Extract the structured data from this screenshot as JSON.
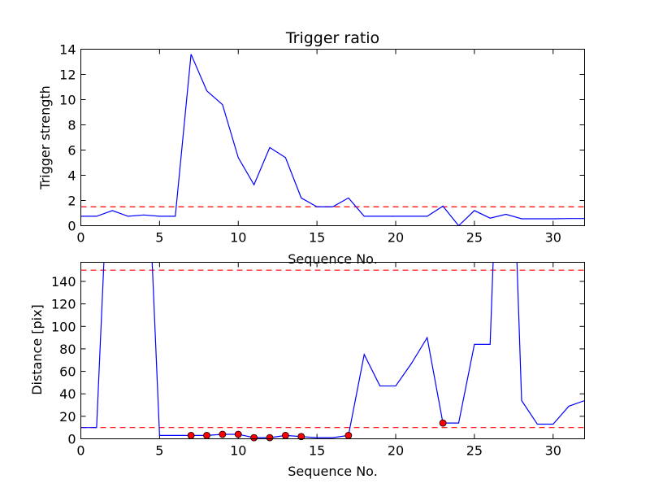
{
  "chart_data": [
    {
      "type": "line",
      "title": "Trigger ratio",
      "xlabel": "Sequence No.",
      "ylabel": "Trigger strength",
      "xlim": [
        0,
        32
      ],
      "ylim": [
        0,
        14
      ],
      "xticks": [
        0,
        5,
        10,
        15,
        20,
        25,
        30
      ],
      "yticks": [
        0,
        2,
        4,
        6,
        8,
        10,
        12,
        14
      ],
      "colors": {
        "line": "#0000ff",
        "threshold": "#ff0000"
      },
      "series": [
        {
          "x": [
            0,
            1,
            2,
            3,
            4,
            5,
            6,
            7,
            8,
            9,
            10,
            11,
            12,
            13,
            14,
            15,
            16,
            17,
            18,
            19,
            20,
            21,
            22,
            23,
            24,
            25,
            26,
            27,
            28,
            29,
            30,
            31,
            32
          ],
          "values": [
            0.75,
            0.75,
            1.2,
            0.75,
            0.85,
            0.75,
            0.75,
            13.6,
            10.7,
            9.6,
            5.4,
            3.25,
            6.2,
            5.4,
            2.2,
            1.5,
            1.5,
            2.2,
            0.75,
            0.75,
            0.75,
            0.75,
            0.75,
            1.55,
            0.0,
            1.2,
            0.6,
            0.9,
            0.55,
            0.55,
            0.55,
            0.57,
            0.57
          ]
        }
      ],
      "thresholds": [
        1.5
      ]
    },
    {
      "type": "line",
      "title": "",
      "xlabel": "Sequence No.",
      "ylabel": "Distance [pix]",
      "xlim": [
        0,
        32
      ],
      "ylim": [
        0,
        157
      ],
      "xticks": [
        0,
        5,
        10,
        15,
        20,
        25,
        30
      ],
      "yticks": [
        0,
        20,
        40,
        60,
        80,
        100,
        120,
        140
      ],
      "colors": {
        "line": "#0000ff",
        "threshold": "#ff0000",
        "marker": "#ff0000"
      },
      "series": [
        {
          "x": [
            0,
            1,
            1.6,
            4.4,
            5,
            6,
            7,
            8,
            9,
            10,
            11,
            12,
            13,
            14,
            15,
            16,
            17,
            18,
            19,
            20,
            21,
            22,
            23,
            24,
            25,
            26,
            26.3,
            27.6,
            28,
            29,
            30,
            31,
            32
          ],
          "values": [
            10,
            10,
            200,
            200,
            3,
            3,
            3,
            3,
            4,
            4,
            1,
            1,
            3,
            2,
            1,
            1,
            3,
            75,
            47,
            47,
            67,
            90,
            14,
            14,
            84,
            84,
            200,
            200,
            34,
            13,
            13,
            29,
            34
          ]
        }
      ],
      "markers": {
        "x": [
          7,
          8,
          9,
          10,
          11,
          12,
          13,
          14,
          17,
          23
        ],
        "values": [
          3,
          3,
          4,
          4,
          1,
          1,
          3,
          2,
          3,
          14
        ]
      },
      "thresholds": [
        10,
        150
      ]
    }
  ]
}
